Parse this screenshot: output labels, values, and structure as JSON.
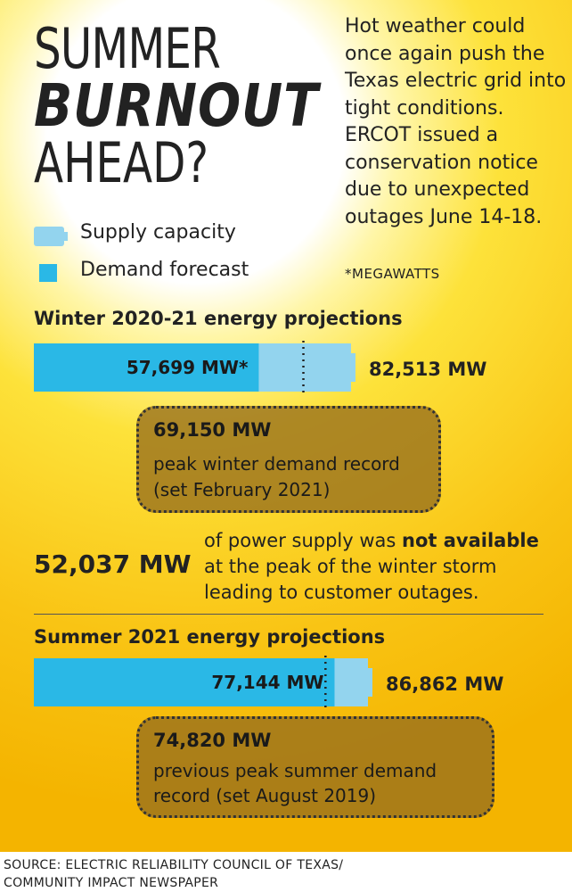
{
  "title": {
    "line1": "SUMMER",
    "line2": "BURNOUT",
    "line3": "AHEAD?"
  },
  "intro": "Hot weather could once again push the Texas electric grid into tight conditions. ERCOT issued a conservation notice due to unexpected outages June 14-18.",
  "unit_note": "*MEGAWATTS",
  "legend": {
    "supply": "Supply capacity",
    "demand": "Demand forecast"
  },
  "colors": {
    "supply": "#93d4ee",
    "demand": "#2ab8e6",
    "record_box": "#96701e",
    "background_start": "#ffffff",
    "background_end": "#f5b800"
  },
  "winter": {
    "title": "Winter 2020-21 energy projections",
    "record_value": "69,150 MW",
    "record_text_1": "peak winter demand record",
    "record_text_2": "(set February 2021)"
  },
  "outage": {
    "value": "52,037 MW",
    "text_before": "of power supply was ",
    "text_bold": "not available",
    "text_line2": "at the peak of the winter storm",
    "text_line3": "leading to customer outages."
  },
  "summer": {
    "title": "Summer 2021 energy projections",
    "record_value": "74,820 MW",
    "record_text_1": "previous peak summer demand",
    "record_text_2": "record (set August 2019)"
  },
  "source_line1": "SOURCE: ELECTRIC RELIABILITY COUNCIL OF TEXAS/",
  "source_line2": "COMMUNITY IMPACT NEWSPAPER",
  "chart_data": {
    "type": "bar",
    "orientation": "horizontal",
    "unit": "MW",
    "categories": [
      "Winter 2020-21 energy projections",
      "Summer 2021 energy projections"
    ],
    "series": [
      {
        "name": "Demand forecast",
        "values": [
          57699,
          77144
        ],
        "labels": [
          "57,699 MW*",
          "77,144 MW"
        ]
      },
      {
        "name": "Supply capacity",
        "values": [
          82513,
          86862
        ],
        "labels": [
          "82,513 MW",
          "86,862 MW"
        ]
      }
    ],
    "reference_lines": [
      {
        "value": 69150,
        "label": "69,150 MW"
      },
      {
        "value": 74820,
        "label": "74,820 MW"
      }
    ],
    "xlim": [
      0,
      86862
    ],
    "legend_position": "top-left"
  }
}
